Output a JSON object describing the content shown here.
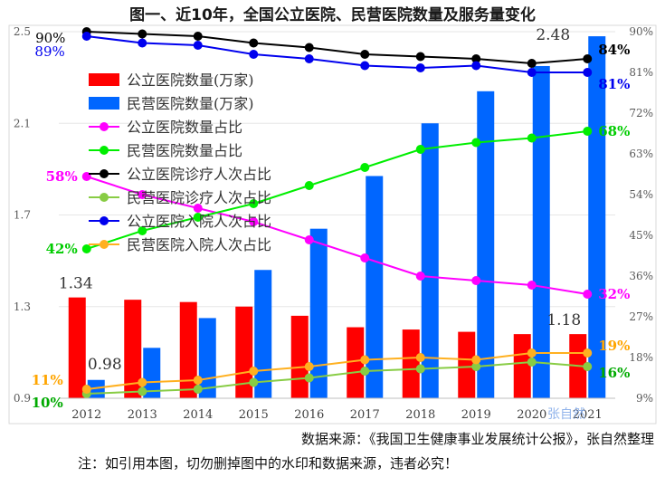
{
  "header": {
    "title": "图一、近10年，全国公立医院、民营医院数量及服务量变化"
  },
  "footer": {
    "source": "数据来源：《我国卫生健康事业发展统计公报》，张自然整理",
    "note": "注：如引用本图，切勿删掉图中的水印和数据来源，违者必究！"
  },
  "watermark": "张自然",
  "chart_data": {
    "type": "bar+line",
    "categories": [
      "2012",
      "2013",
      "2014",
      "2015",
      "2016",
      "2017",
      "2018",
      "2019",
      "2020",
      "2021"
    ],
    "left_axis": {
      "min": 0.9,
      "max": 2.5,
      "ticks": [
        "0.9",
        "1.3",
        "1.7",
        "2.1",
        "2.5"
      ]
    },
    "right_axis": {
      "min": 9,
      "max": 90,
      "ticks": [
        "9%",
        "18%",
        "27%",
        "36%",
        "45%",
        "54%",
        "63%",
        "72%",
        "81%",
        "90%"
      ]
    },
    "bars": [
      {
        "name": "公立医院数量(万家)",
        "color": "#ff0000",
        "values": [
          1.34,
          1.33,
          1.32,
          1.3,
          1.26,
          1.21,
          1.2,
          1.19,
          1.18,
          1.18
        ]
      },
      {
        "name": "民营医院数量(万家)",
        "color": "#0066ff",
        "values": [
          0.98,
          1.12,
          1.25,
          1.46,
          1.64,
          1.87,
          2.1,
          2.24,
          2.35,
          2.48
        ]
      }
    ],
    "lines": [
      {
        "name": "公立医院数量占比",
        "color": "#ff00ff",
        "values": [
          58,
          54,
          51,
          48,
          44,
          40,
          36,
          35,
          34,
          32
        ]
      },
      {
        "name": "民营医院数量占比",
        "color": "#00ee00",
        "values": [
          42,
          46,
          49,
          52,
          56,
          60,
          64,
          65.5,
          66.5,
          68
        ]
      },
      {
        "name": "公立医院诊疗人次占比",
        "color": "#000000",
        "values": [
          90,
          89.5,
          89,
          87.5,
          86.5,
          85,
          84.5,
          84,
          83,
          84
        ]
      },
      {
        "name": "民营医院诊疗人次占比",
        "color": "#88cc44",
        "values": [
          10,
          10.5,
          11,
          12.5,
          13.5,
          15,
          15.5,
          16,
          17,
          16
        ]
      },
      {
        "name": "公立医院入院人次占比",
        "color": "#0000ee",
        "values": [
          89,
          87.5,
          87,
          85,
          84,
          82.5,
          82,
          82.5,
          81,
          81
        ]
      },
      {
        "name": "民营医院入院人次占比",
        "color": "#ffb020",
        "values": [
          11,
          12.5,
          13,
          15,
          16,
          17.5,
          18,
          17.5,
          19,
          19
        ]
      }
    ],
    "data_labels": [
      {
        "text": "1.34",
        "color": "#333333"
      },
      {
        "text": "0.98",
        "color": "#333333"
      },
      {
        "text": "1.18",
        "color": "#333333"
      },
      {
        "text": "2.48",
        "color": "#333333"
      },
      {
        "text": "90%",
        "color": "#000000"
      },
      {
        "text": "89%",
        "color": "#0000ee"
      },
      {
        "text": "58%",
        "color": "#ff00ff"
      },
      {
        "text": "42%",
        "color": "#00cc00"
      },
      {
        "text": "11%",
        "color": "#ffa500"
      },
      {
        "text": "10%",
        "color": "#00aa00"
      },
      {
        "text": "84%",
        "color": "#000000"
      },
      {
        "text": "81%",
        "color": "#0000ee"
      },
      {
        "text": "68%",
        "color": "#00cc00"
      },
      {
        "text": "32%",
        "color": "#ff00ff"
      },
      {
        "text": "19%",
        "color": "#ffa500"
      },
      {
        "text": "16%",
        "color": "#00aa00"
      }
    ]
  }
}
